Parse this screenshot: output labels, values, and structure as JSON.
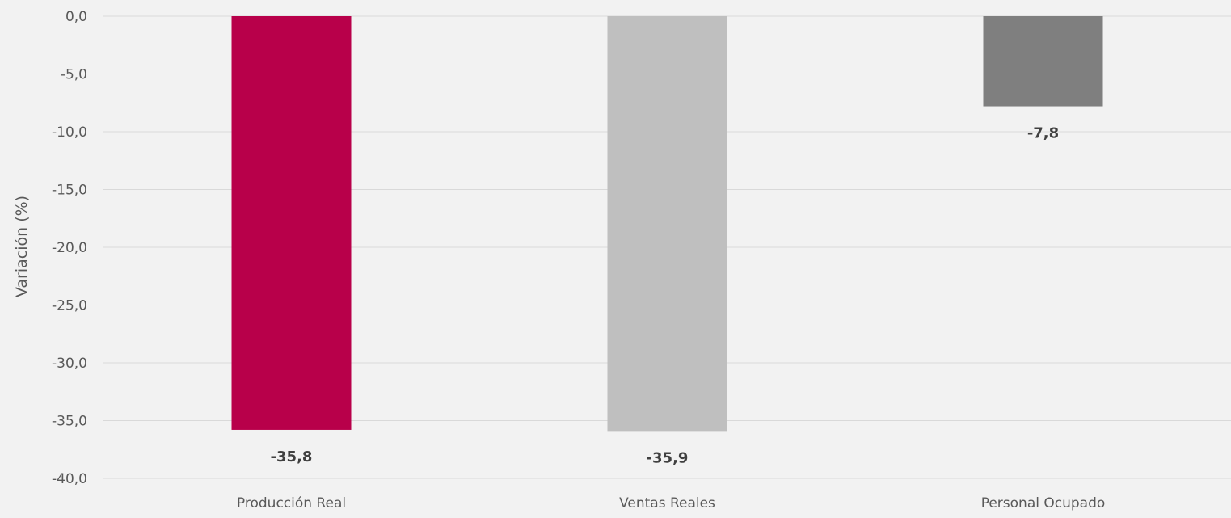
{
  "chart_data": {
    "type": "bar",
    "categories": [
      "Producción Real",
      "Ventas Reales",
      "Personal Ocupado"
    ],
    "values": [
      -35.8,
      -35.9,
      -7.8
    ],
    "data_labels": [
      "-35,8",
      "-35,9",
      "-7,8"
    ],
    "colors": [
      "#b8004a",
      "#bfbfbf",
      "#7f7f7f"
    ],
    "ylabel": "Variación (%)",
    "xlabel": "",
    "ylim": [
      -40,
      0
    ],
    "yticks": [
      0,
      -5,
      -10,
      -15,
      -20,
      -25,
      -30,
      -35,
      -40
    ],
    "ytick_labels": [
      "0,0",
      "-5,0",
      "-10,0",
      "-15,0",
      "-20,0",
      "-25,0",
      "-30,0",
      "-35,0",
      "-40,0"
    ],
    "grid": true,
    "legend": "none"
  }
}
